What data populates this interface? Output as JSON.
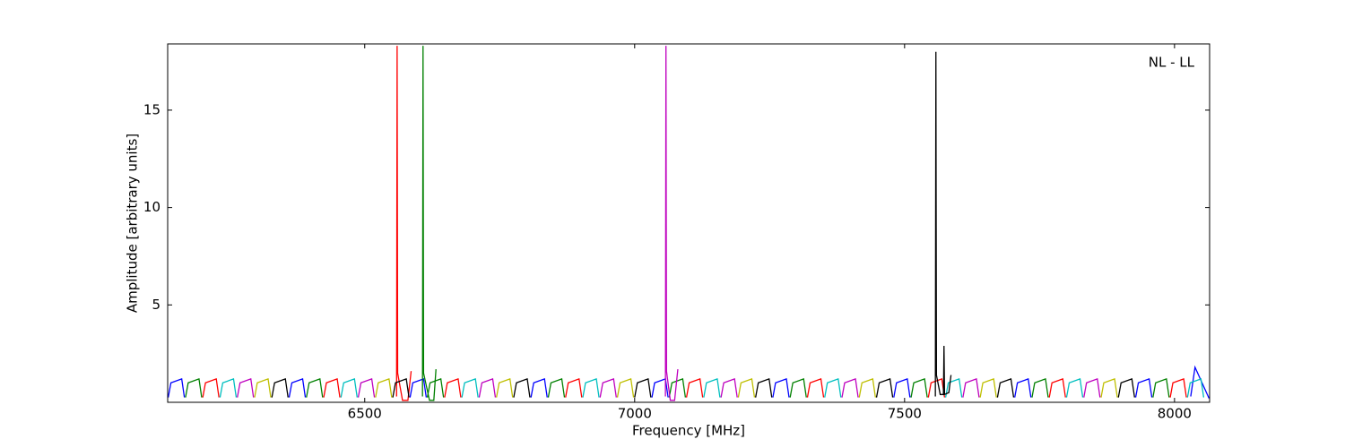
{
  "chart_data": {
    "type": "line",
    "xlabel": "Frequency [MHz]",
    "ylabel": "Amplitude [arbitrary units]",
    "annotation": "NL - LL",
    "xlim": [
      6135,
      8065
    ],
    "ylim": [
      0,
      18.4
    ],
    "xticks": [
      6500,
      7000,
      7500,
      8000
    ],
    "yticks": [
      5,
      10,
      15
    ],
    "grid": false,
    "series": [
      {
        "name": "b",
        "color": "#0000ff",
        "x": [
          6136,
          6141,
          6161,
          6166,
          null,
          6360,
          6365,
          6385,
          6390,
          null,
          6584,
          6589,
          6609,
          6614,
          null,
          6808,
          6813,
          6833,
          6838,
          null,
          7032,
          7037,
          7057,
          7062,
          null,
          7256,
          7261,
          7281,
          7286,
          null,
          7480,
          7485,
          7505,
          7510,
          null,
          7704,
          7709,
          7729,
          7734,
          null,
          7928,
          7933,
          7953,
          7958,
          null,
          8030,
          8038,
          8064
        ],
        "values": [
          0.25,
          1.0,
          1.2,
          0.25,
          null,
          0.25,
          1.0,
          1.2,
          0.25,
          null,
          0.25,
          1.0,
          1.2,
          0.25,
          null,
          0.25,
          1.0,
          1.2,
          0.25,
          null,
          0.25,
          1.0,
          1.2,
          0.25,
          null,
          0.25,
          1.0,
          1.2,
          0.25,
          null,
          0.25,
          1.0,
          1.2,
          0.25,
          null,
          0.25,
          1.0,
          1.2,
          0.25,
          null,
          0.25,
          1.0,
          1.2,
          0.25,
          null,
          0.3,
          1.8,
          0.2
        ]
      },
      {
        "name": "g",
        "color": "#008000",
        "x": [
          6168,
          6173,
          6193,
          6198,
          null,
          6392,
          6397,
          6417,
          6422,
          null,
          6616,
          6621,
          6641,
          6646,
          null,
          6840,
          6845,
          6865,
          6870,
          null,
          7064,
          7069,
          7089,
          7094,
          null,
          7288,
          7293,
          7313,
          7318,
          null,
          7512,
          7517,
          7537,
          7542,
          null,
          7736,
          7741,
          7761,
          7766,
          null,
          7960,
          7965,
          7985,
          7990,
          null,
          6607,
          6608,
          6609,
          6620,
          6628,
          6632
        ],
        "values": [
          0.25,
          1.0,
          1.2,
          0.25,
          null,
          0.25,
          1.0,
          1.2,
          0.25,
          null,
          0.25,
          1.0,
          1.2,
          0.25,
          null,
          0.25,
          1.0,
          1.2,
          0.25,
          null,
          0.25,
          1.0,
          1.2,
          0.25,
          null,
          0.25,
          1.0,
          1.2,
          0.25,
          null,
          0.25,
          1.0,
          1.2,
          0.25,
          null,
          0.25,
          1.0,
          1.2,
          0.25,
          null,
          0.25,
          1.0,
          1.2,
          0.25,
          null,
          0.3,
          18.3,
          1.5,
          0.1,
          0.1,
          1.7
        ]
      },
      {
        "name": "r",
        "color": "#ff0000",
        "x": [
          6200,
          6205,
          6225,
          6230,
          null,
          6424,
          6429,
          6449,
          6454,
          null,
          6648,
          6653,
          6673,
          6678,
          null,
          6872,
          6877,
          6897,
          6902,
          null,
          7096,
          7101,
          7121,
          7126,
          null,
          7320,
          7325,
          7345,
          7350,
          null,
          7544,
          7549,
          7569,
          7574,
          null,
          7768,
          7773,
          7793,
          7798,
          null,
          7992,
          7997,
          8017,
          8022,
          null,
          6559,
          6560,
          6561,
          6570,
          6580,
          6586
        ],
        "values": [
          0.25,
          1.0,
          1.2,
          0.25,
          null,
          0.25,
          1.0,
          1.2,
          0.25,
          null,
          0.25,
          1.0,
          1.2,
          0.25,
          null,
          0.25,
          1.0,
          1.2,
          0.25,
          null,
          0.25,
          1.0,
          1.2,
          0.25,
          null,
          0.25,
          1.0,
          1.2,
          0.25,
          null,
          0.25,
          1.0,
          1.2,
          0.25,
          null,
          0.25,
          1.0,
          1.2,
          0.25,
          null,
          0.25,
          1.0,
          1.2,
          0.25,
          null,
          0.3,
          18.3,
          1.5,
          0.1,
          0.1,
          1.6
        ]
      },
      {
        "name": "c",
        "color": "#00bfbf",
        "x": [
          6232,
          6237,
          6257,
          6262,
          null,
          6456,
          6461,
          6481,
          6486,
          null,
          6680,
          6685,
          6705,
          6710,
          null,
          6904,
          6909,
          6929,
          6934,
          null,
          7128,
          7133,
          7153,
          7158,
          null,
          7352,
          7357,
          7377,
          7382,
          null,
          7576,
          7581,
          7601,
          7606,
          null,
          7800,
          7805,
          7825,
          7830,
          null,
          8024,
          8029,
          8049,
          8054
        ],
        "values": [
          0.25,
          1.0,
          1.2,
          0.25,
          null,
          0.25,
          1.0,
          1.2,
          0.25,
          null,
          0.25,
          1.0,
          1.2,
          0.25,
          null,
          0.25,
          1.0,
          1.2,
          0.25,
          null,
          0.25,
          1.0,
          1.2,
          0.25,
          null,
          0.25,
          1.0,
          1.2,
          0.25,
          null,
          0.25,
          1.0,
          1.2,
          0.25,
          null,
          0.25,
          1.0,
          1.2,
          0.25,
          null,
          0.25,
          1.0,
          1.2,
          0.25
        ]
      },
      {
        "name": "m",
        "color": "#bf00bf",
        "x": [
          6264,
          6269,
          6289,
          6294,
          null,
          6488,
          6493,
          6513,
          6518,
          null,
          6712,
          6717,
          6737,
          6742,
          null,
          6936,
          6941,
          6961,
          6966,
          null,
          7160,
          7165,
          7185,
          7190,
          null,
          7384,
          7389,
          7409,
          7414,
          null,
          7608,
          7613,
          7633,
          7638,
          null,
          7832,
          7837,
          7857,
          7862,
          null,
          7057,
          7058,
          7059,
          7066,
          7074,
          7080
        ],
        "values": [
          0.25,
          1.0,
          1.2,
          0.25,
          null,
          0.25,
          1.0,
          1.2,
          0.25,
          null,
          0.25,
          1.0,
          1.2,
          0.25,
          null,
          0.25,
          1.0,
          1.2,
          0.25,
          null,
          0.25,
          1.0,
          1.2,
          0.25,
          null,
          0.25,
          1.0,
          1.2,
          0.25,
          null,
          0.25,
          1.0,
          1.2,
          0.25,
          null,
          0.25,
          1.0,
          1.2,
          0.25,
          null,
          0.3,
          18.3,
          1.6,
          0.1,
          0.1,
          1.7
        ]
      },
      {
        "name": "y",
        "color": "#bfbf00",
        "x": [
          6296,
          6301,
          6321,
          6326,
          null,
          6520,
          6525,
          6545,
          6550,
          null,
          6744,
          6749,
          6769,
          6774,
          null,
          6968,
          6973,
          6993,
          6998,
          null,
          7192,
          7197,
          7217,
          7222,
          null,
          7416,
          7421,
          7441,
          7446,
          null,
          7640,
          7645,
          7665,
          7670,
          null,
          7864,
          7869,
          7889,
          7894
        ],
        "values": [
          0.25,
          1.0,
          1.2,
          0.25,
          null,
          0.25,
          1.0,
          1.2,
          0.25,
          null,
          0.25,
          1.0,
          1.2,
          0.25,
          null,
          0.25,
          1.0,
          1.2,
          0.25,
          null,
          0.25,
          1.0,
          1.2,
          0.25,
          null,
          0.25,
          1.0,
          1.2,
          0.25,
          null,
          0.25,
          1.0,
          1.2,
          0.25,
          null,
          0.25,
          1.0,
          1.2,
          0.25
        ]
      },
      {
        "name": "k",
        "color": "#000000",
        "x": [
          6328,
          6333,
          6353,
          6358,
          null,
          6552,
          6557,
          6577,
          6582,
          null,
          6776,
          6781,
          6801,
          6806,
          null,
          7000,
          7005,
          7025,
          7030,
          null,
          7224,
          7229,
          7249,
          7254,
          null,
          7448,
          7453,
          7473,
          7478,
          null,
          7672,
          7677,
          7697,
          7702,
          null,
          7896,
          7901,
          7921,
          7926,
          null,
          7557,
          7558,
          7559,
          7566,
          7572,
          7573,
          7574,
          7582,
          7586
        ],
        "values": [
          0.25,
          1.0,
          1.2,
          0.25,
          null,
          0.25,
          1.0,
          1.2,
          0.25,
          null,
          0.25,
          1.0,
          1.2,
          0.25,
          null,
          0.25,
          1.0,
          1.2,
          0.25,
          null,
          0.25,
          1.0,
          1.2,
          0.25,
          null,
          0.25,
          1.0,
          1.2,
          0.25,
          null,
          0.25,
          1.0,
          1.2,
          0.25,
          null,
          0.25,
          1.0,
          1.2,
          0.25,
          null,
          0.3,
          18.0,
          1.4,
          0.4,
          0.4,
          2.9,
          0.4,
          0.5,
          1.4
        ]
      }
    ]
  }
}
